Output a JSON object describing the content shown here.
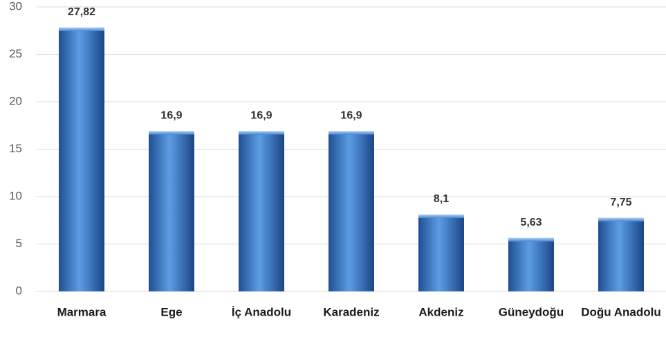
{
  "chart_data": {
    "type": "bar",
    "categories": [
      "Marmara",
      "Ege",
      "İç Anadolu",
      "Karadeniz",
      "Akdeniz",
      "Güneydoğu",
      "Doğu Anadolu"
    ],
    "values": [
      27.82,
      16.9,
      16.9,
      16.9,
      8.1,
      5.63,
      7.75
    ],
    "value_labels": [
      "27,82",
      "16,9",
      "16,9",
      "16,9",
      "8,1",
      "5,63",
      "7,75"
    ],
    "color": "#4a86d0",
    "ylim": [
      0,
      30
    ],
    "yticks": [
      0,
      5,
      10,
      15,
      20,
      25,
      30
    ],
    "grid": true
  }
}
